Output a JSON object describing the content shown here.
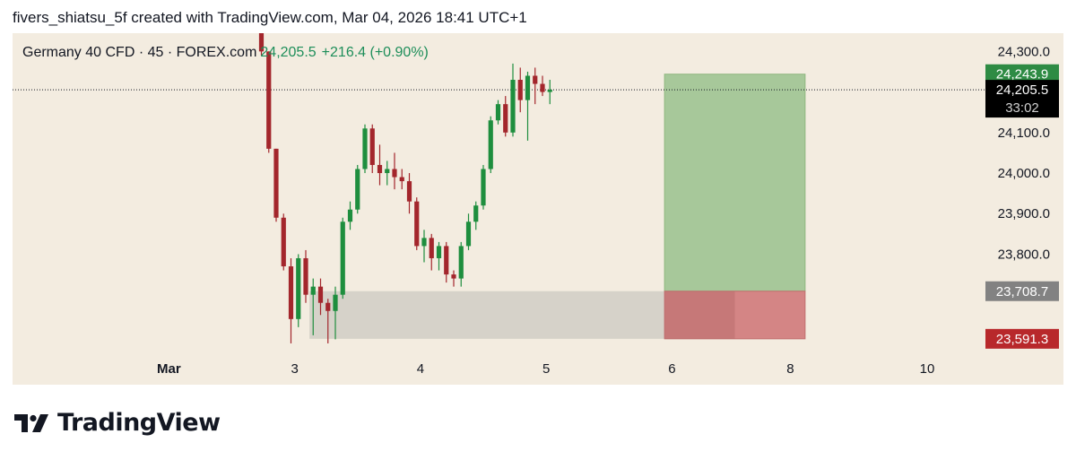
{
  "header": {
    "caption": "fivers_shiatsu_5f created with TradingView.com, Mar 04, 2026 18:41 UTC+1"
  },
  "legend": {
    "symbol": "Germany 40 CFD · 45 · FOREX.com",
    "last_price": "24,205.5",
    "change": "+216.4 (+0.90%)"
  },
  "footer": {
    "brand": "TradingView"
  },
  "colors": {
    "bg": "#f3ece0",
    "up": "#1e8e3e",
    "down": "#a3262c",
    "target_zone": "#a7c89a",
    "stop_zone": "#d48585",
    "demand_zone": "#d6d2c9"
  },
  "chart_data": {
    "type": "candlestick",
    "title": "Germany 40 CFD · 45 · FOREX.com",
    "y_range": [
      23560,
      24345
    ],
    "y_ticks": [
      {
        "value": 24300,
        "label": "24,300.0"
      },
      {
        "value": 24100,
        "label": "24,100.0"
      },
      {
        "value": 24000,
        "label": "24,000.0"
      },
      {
        "value": 23900,
        "label": "23,900.0"
      },
      {
        "value": 23800,
        "label": "23,800.0"
      }
    ],
    "x_ticks": [
      {
        "label": "Mar",
        "bar": -12.5
      },
      {
        "label": "3",
        "bar": 4.5
      },
      {
        "label": "4",
        "bar": 21.5
      },
      {
        "label": "5",
        "bar": 38.5
      },
      {
        "label": "6",
        "bar": 55.5
      },
      {
        "label": "8",
        "bar": 71.5
      },
      {
        "label": "10",
        "bar": 90
      }
    ],
    "candles": [
      [
        24420,
        24425,
        24290,
        24300
      ],
      [
        24300,
        24300,
        24050,
        24060
      ],
      [
        24060,
        24060,
        23880,
        23890
      ],
      [
        23890,
        23900,
        23760,
        23770
      ],
      [
        23770,
        23790,
        23580,
        23640
      ],
      [
        23640,
        23800,
        23620,
        23790
      ],
      [
        23790,
        23810,
        23680,
        23700
      ],
      [
        23700,
        23740,
        23600,
        23720
      ],
      [
        23720,
        23740,
        23650,
        23680
      ],
      [
        23680,
        23690,
        23580,
        23660
      ],
      [
        23660,
        23720,
        23590,
        23700
      ],
      [
        23700,
        23890,
        23690,
        23880
      ],
      [
        23880,
        23930,
        23860,
        23910
      ],
      [
        23910,
        24020,
        23900,
        24010
      ],
      [
        24010,
        24120,
        24000,
        24110
      ],
      [
        24110,
        24120,
        24000,
        24020
      ],
      [
        24020,
        24070,
        23970,
        24000
      ],
      [
        24000,
        24030,
        23970,
        24010
      ],
      [
        24010,
        24050,
        23960,
        23990
      ],
      [
        23990,
        24010,
        23960,
        23980
      ],
      [
        23980,
        24000,
        23900,
        23930
      ],
      [
        23930,
        23940,
        23810,
        23820
      ],
      [
        23820,
        23860,
        23780,
        23840
      ],
      [
        23840,
        23850,
        23760,
        23790
      ],
      [
        23790,
        23830,
        23760,
        23820
      ],
      [
        23820,
        23830,
        23730,
        23750
      ],
      [
        23750,
        23760,
        23720,
        23740
      ],
      [
        23740,
        23830,
        23720,
        23820
      ],
      [
        23820,
        23900,
        23810,
        23880
      ],
      [
        23880,
        23930,
        23860,
        23920
      ],
      [
        23920,
        24020,
        23910,
        24010
      ],
      [
        24010,
        24140,
        24000,
        24130
      ],
      [
        24130,
        24180,
        24120,
        24170
      ],
      [
        24170,
        24190,
        24090,
        24100
      ],
      [
        24100,
        24270,
        24090,
        24230
      ],
      [
        24230,
        24260,
        24150,
        24180
      ],
      [
        24180,
        24250,
        24080,
        24240
      ],
      [
        24240,
        24260,
        24170,
        24220
      ],
      [
        24220,
        24240,
        24190,
        24200
      ],
      [
        24200,
        24230,
        24170,
        24205.5
      ]
    ],
    "first_candle_bar": 0,
    "position": {
      "type": "long",
      "target": 24243.9,
      "entry": 23708.7,
      "stop": 23591.3,
      "bar_start": 54.5,
      "bar_end": 73.5,
      "projection_bar_end": 64
    },
    "demand_zone": {
      "top": 23708.7,
      "bottom": 23591.3,
      "bar_start": 6.5,
      "bar_end": 54.5
    },
    "last_price_line": 24205.5,
    "price_labels": [
      {
        "label": "24,243.9",
        "value": 24243.9,
        "color": "#2e8b44"
      },
      {
        "label": "24,205.5",
        "sublabel": "33:02",
        "value": 24205.5,
        "color": "#000000"
      },
      {
        "label": "23,708.7",
        "value": 23708.7,
        "color": "#828282"
      },
      {
        "label": "23,591.3",
        "value": 23591.3,
        "color": "#b8282b"
      }
    ]
  }
}
